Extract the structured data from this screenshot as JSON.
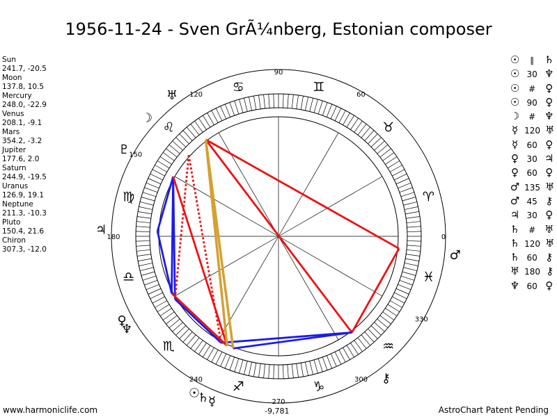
{
  "title": "1956-11-24 - Sven GrÃ¼nberg, Estonian composer",
  "planets": [
    {
      "name": "Sun",
      "glyph": "☉",
      "pos": "241.7, -20.5",
      "lon": 241.7
    },
    {
      "name": "Moon",
      "glyph": "☽",
      "pos": "137.8, 10.5",
      "lon": 137.8
    },
    {
      "name": "Mercury",
      "glyph": "☿",
      "pos": "248.0, -22.9",
      "lon": 248.0
    },
    {
      "name": "Venus",
      "glyph": "♀",
      "pos": "208.1, -9.1",
      "lon": 208.1
    },
    {
      "name": "Mars",
      "glyph": "♂",
      "pos": "354.2, -3.2",
      "lon": 354.2
    },
    {
      "name": "Jupiter",
      "glyph": "♃",
      "pos": "177.6, 2.0",
      "lon": 177.6
    },
    {
      "name": "Saturn",
      "glyph": "♄",
      "pos": "244.9, -19.5",
      "lon": 244.9
    },
    {
      "name": "Uranus",
      "glyph": "♅",
      "pos": "126.9, 19.1",
      "lon": 126.9
    },
    {
      "name": "Neptune",
      "glyph": "♆",
      "pos": "211.3, -10.3",
      "lon": 211.3
    },
    {
      "name": "Pluto",
      "glyph": "♇",
      "pos": "150.4, 21.6",
      "lon": 150.4
    },
    {
      "name": "Chiron",
      "glyph": "⚷",
      "pos": "307.3, -12.0",
      "lon": 307.3
    }
  ],
  "aspects": [
    {
      "a": "☉",
      "type": "∥",
      "b": "♄"
    },
    {
      "a": "☉",
      "type": "30",
      "b": "♆"
    },
    {
      "a": "☉",
      "type": "#",
      "b": "♀"
    },
    {
      "a": "☉",
      "type": "90",
      "b": "♀"
    },
    {
      "a": "☽",
      "type": "#",
      "b": "♆"
    },
    {
      "a": "☿",
      "type": "120",
      "b": "♅"
    },
    {
      "a": "☿",
      "type": "60",
      "b": "♀"
    },
    {
      "a": "♀",
      "type": "30",
      "b": "♃"
    },
    {
      "a": "♀",
      "type": "60",
      "b": "♀"
    },
    {
      "a": "♂",
      "type": "135",
      "b": "♅"
    },
    {
      "a": "♂",
      "type": "45",
      "b": "⚷"
    },
    {
      "a": "♃",
      "type": "30",
      "b": "♀"
    },
    {
      "a": "♄",
      "type": "#",
      "b": "♅"
    },
    {
      "a": "♄",
      "type": "120",
      "b": "♅"
    },
    {
      "a": "♄",
      "type": "60",
      "b": "⚷"
    },
    {
      "a": "♅",
      "type": "180",
      "b": "⚷"
    },
    {
      "a": "♆",
      "type": "60",
      "b": "♀"
    }
  ],
  "zodiac_signs": [
    "♈",
    "♉",
    "♊",
    "♋",
    "♌",
    "♍",
    "♎",
    "♏",
    "♐",
    "♑",
    "♒",
    "♓"
  ],
  "degree_labels": [
    {
      "deg": 0,
      "text": "0"
    },
    {
      "deg": 60,
      "text": "60"
    },
    {
      "deg": 90,
      "text": "90"
    },
    {
      "deg": 120,
      "text": "120"
    },
    {
      "deg": 150,
      "text": "150"
    },
    {
      "deg": 180,
      "text": "180"
    },
    {
      "deg": 240,
      "text": "240"
    },
    {
      "deg": 270,
      "text": "270"
    },
    {
      "deg": 300,
      "text": "300"
    },
    {
      "deg": 330,
      "text": "330"
    }
  ],
  "score": "-9,781",
  "footer_left": "www.harmoniclife.com",
  "footer_right": "AstroChart Patent Pending",
  "colors": {
    "red": "#ee1111",
    "blue": "#1a1aee",
    "gold": "#d4a030",
    "ring": "#000000"
  },
  "aspect_lines": [
    {
      "from": "Uranus",
      "to": "Mars",
      "color": "red",
      "style": "solid"
    },
    {
      "from": "Uranus",
      "to": "Chiron",
      "color": "red",
      "style": "solid"
    },
    {
      "from": "Mars",
      "to": "Chiron",
      "color": "red",
      "style": "solid"
    },
    {
      "from": "Chiron",
      "to": "Sun",
      "color": "blue",
      "style": "solid"
    },
    {
      "from": "Chiron",
      "to": "Mercury",
      "color": "blue",
      "style": "solid"
    },
    {
      "from": "Pluto",
      "to": "Neptune",
      "color": "blue",
      "style": "solid"
    },
    {
      "from": "Pluto",
      "to": "Venus",
      "color": "blue",
      "style": "solid"
    },
    {
      "from": "Pluto",
      "to": "Jupiter",
      "color": "blue",
      "style": "solid"
    },
    {
      "from": "Jupiter",
      "to": "Venus",
      "color": "blue",
      "style": "solid"
    },
    {
      "from": "Neptune",
      "to": "Sun",
      "color": "blue",
      "style": "solid"
    },
    {
      "from": "Pluto",
      "to": "Saturn",
      "color": "red",
      "style": "solid"
    },
    {
      "from": "Venus",
      "to": "Saturn",
      "color": "red",
      "style": "solid"
    },
    {
      "from": "Uranus",
      "to": "Saturn",
      "color": "gold",
      "style": "solid"
    },
    {
      "from": "Uranus",
      "to": "Mercury",
      "color": "gold",
      "style": "solid"
    },
    {
      "from": "Moon",
      "to": "Sun",
      "color": "red",
      "style": "dotted"
    },
    {
      "from": "Moon",
      "to": "Neptune",
      "color": "red",
      "style": "dotted"
    }
  ]
}
